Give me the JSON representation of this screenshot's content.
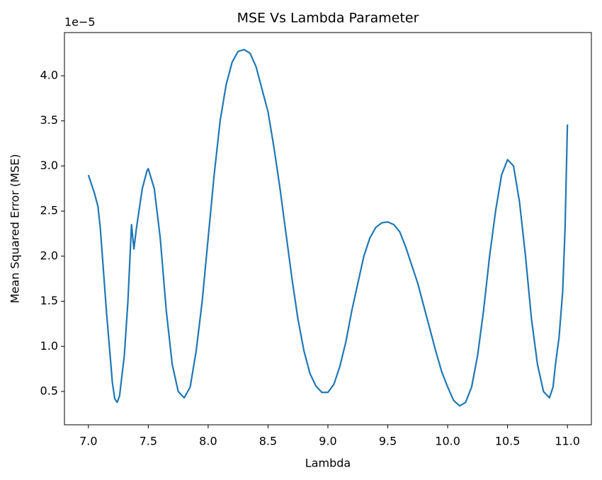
{
  "chart_data": {
    "type": "line",
    "title": "MSE Vs Lambda Parameter",
    "x_label": "Lambda",
    "y_label": "Mean Squared Error (MSE)",
    "y_offset_label": "1e−5",
    "color": "#1f77b4",
    "x": [
      7.0,
      7.05,
      7.08,
      7.1,
      7.15,
      7.2,
      7.22,
      7.24,
      7.26,
      7.3,
      7.33,
      7.36,
      7.38,
      7.4,
      7.45,
      7.49,
      7.5,
      7.55,
      7.6,
      7.65,
      7.7,
      7.75,
      7.8,
      7.85,
      7.9,
      7.95,
      8.0,
      8.05,
      8.1,
      8.15,
      8.2,
      8.25,
      8.3,
      8.35,
      8.4,
      8.45,
      8.5,
      8.55,
      8.6,
      8.65,
      8.7,
      8.75,
      8.8,
      8.85,
      8.9,
      8.95,
      9.0,
      9.05,
      9.1,
      9.15,
      9.2,
      9.25,
      9.3,
      9.35,
      9.4,
      9.45,
      9.5,
      9.55,
      9.6,
      9.65,
      9.7,
      9.75,
      9.8,
      9.85,
      9.9,
      9.95,
      10.0,
      10.05,
      10.1,
      10.15,
      10.2,
      10.25,
      10.3,
      10.35,
      10.4,
      10.45,
      10.5,
      10.55,
      10.6,
      10.65,
      10.7,
      10.75,
      10.8,
      10.85,
      10.88,
      10.9,
      10.93,
      10.96,
      10.98,
      11.0
    ],
    "values": [
      2.9,
      2.7,
      2.55,
      2.3,
      1.4,
      0.6,
      0.42,
      0.38,
      0.45,
      0.9,
      1.5,
      2.35,
      2.08,
      2.3,
      2.75,
      2.95,
      2.97,
      2.75,
      2.2,
      1.4,
      0.8,
      0.5,
      0.43,
      0.55,
      0.95,
      1.5,
      2.2,
      2.9,
      3.5,
      3.9,
      4.15,
      4.27,
      4.29,
      4.25,
      4.1,
      3.85,
      3.6,
      3.2,
      2.75,
      2.25,
      1.75,
      1.3,
      0.95,
      0.7,
      0.56,
      0.49,
      0.49,
      0.58,
      0.78,
      1.05,
      1.4,
      1.7,
      2.0,
      2.2,
      2.32,
      2.37,
      2.38,
      2.35,
      2.27,
      2.1,
      1.9,
      1.7,
      1.45,
      1.2,
      0.95,
      0.72,
      0.55,
      0.4,
      0.34,
      0.38,
      0.55,
      0.9,
      1.4,
      2.0,
      2.5,
      2.9,
      3.07,
      3.0,
      2.6,
      2.0,
      1.3,
      0.8,
      0.5,
      0.43,
      0.55,
      0.8,
      1.1,
      1.6,
      2.3,
      3.46
    ],
    "xlim": [
      6.8,
      11.2
    ],
    "ylim": [
      0.131,
      4.479
    ],
    "xticks": [
      {
        "value": 7,
        "label": "7.0"
      },
      7.5,
      {
        "value": 8,
        "label": "8.0"
      },
      8.5,
      {
        "value": 9,
        "label": "9.0"
      },
      9.5,
      {
        "value": 10,
        "label": "10.0"
      },
      10.5,
      {
        "value": 11,
        "label": "11.0"
      }
    ],
    "yticks": [
      0.5,
      {
        "value": 1,
        "label": "1.0"
      },
      1.5,
      {
        "value": 2,
        "label": "2.0"
      },
      2.5,
      {
        "value": 3,
        "label": "3.0"
      },
      3.5,
      {
        "value": 4,
        "label": "4.0"
      }
    ]
  }
}
